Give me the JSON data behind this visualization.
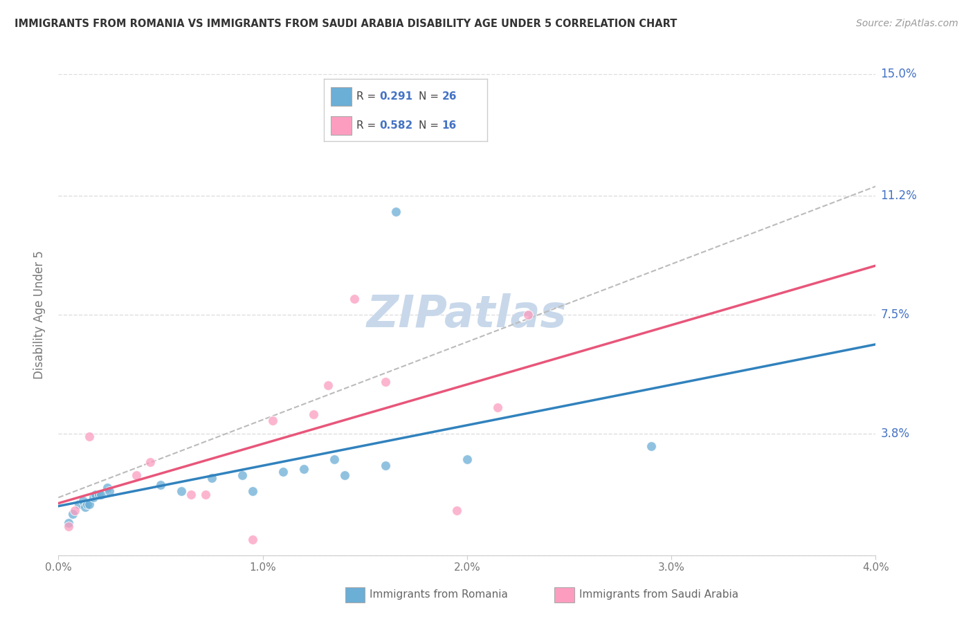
{
  "title": "IMMIGRANTS FROM ROMANIA VS IMMIGRANTS FROM SAUDI ARABIA DISABILITY AGE UNDER 5 CORRELATION CHART",
  "source": "Source: ZipAtlas.com",
  "ylabel": "Disability Age Under 5",
  "xlim": [
    0.0,
    0.04
  ],
  "ylim": [
    0.0,
    0.15
  ],
  "ytick_labels": [
    "",
    "3.8%",
    "7.5%",
    "11.2%",
    "15.0%"
  ],
  "ytick_values": [
    0.0,
    0.038,
    0.075,
    0.112,
    0.15
  ],
  "xtick_labels": [
    "0.0%",
    "1.0%",
    "2.0%",
    "3.0%",
    "4.0%"
  ],
  "xtick_values": [
    0.0,
    0.01,
    0.02,
    0.03,
    0.04
  ],
  "romania_color": "#6baed6",
  "saudi_color": "#fc9dbf",
  "romania_line_color": "#3182bd",
  "saudi_line_color": "#e8567a",
  "romania_R": 0.291,
  "romania_N": 26,
  "saudi_R": 0.582,
  "saudi_N": 16,
  "romania_scatter_x": [
    0.0005,
    0.0007,
    0.001,
    0.0012,
    0.0013,
    0.0014,
    0.0015,
    0.0017,
    0.0018,
    0.002,
    0.0021,
    0.0024,
    0.0025,
    0.005,
    0.006,
    0.0075,
    0.009,
    0.0095,
    0.011,
    0.012,
    0.0135,
    0.014,
    0.016,
    0.0165,
    0.02,
    0.029
  ],
  "romania_scatter_y": [
    0.01,
    0.013,
    0.016,
    0.017,
    0.015,
    0.016,
    0.016,
    0.018,
    0.019,
    0.019,
    0.019,
    0.021,
    0.02,
    0.022,
    0.02,
    0.024,
    0.025,
    0.02,
    0.026,
    0.027,
    0.03,
    0.025,
    0.028,
    0.107,
    0.03,
    0.034
  ],
  "saudi_scatter_x": [
    0.0005,
    0.0008,
    0.0015,
    0.0038,
    0.0045,
    0.0065,
    0.0072,
    0.0095,
    0.0105,
    0.0125,
    0.0132,
    0.0145,
    0.016,
    0.0195,
    0.0215,
    0.023
  ],
  "saudi_scatter_y": [
    0.009,
    0.014,
    0.037,
    0.025,
    0.029,
    0.019,
    0.019,
    0.005,
    0.042,
    0.044,
    0.053,
    0.08,
    0.054,
    0.014,
    0.046,
    0.075
  ],
  "background_color": "#ffffff",
  "grid_color": "#dddddd",
  "watermark_text": "ZIPatlas",
  "watermark_color": "#c8d8ea",
  "right_label_color": "#4472c4",
  "legend_label_color": "#4472c4",
  "bottom_legend_color": "#666666"
}
